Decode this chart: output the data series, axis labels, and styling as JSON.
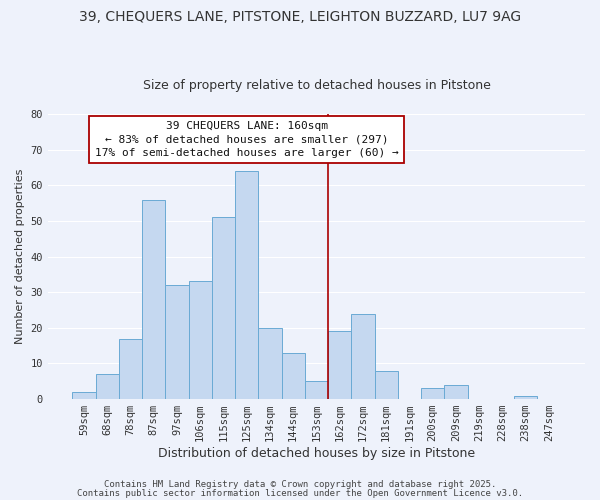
{
  "title": "39, CHEQUERS LANE, PITSTONE, LEIGHTON BUZZARD, LU7 9AG",
  "subtitle": "Size of property relative to detached houses in Pitstone",
  "xlabel": "Distribution of detached houses by size in Pitstone",
  "ylabel": "Number of detached properties",
  "bar_labels": [
    "59sqm",
    "68sqm",
    "78sqm",
    "87sqm",
    "97sqm",
    "106sqm",
    "115sqm",
    "125sqm",
    "134sqm",
    "144sqm",
    "153sqm",
    "162sqm",
    "172sqm",
    "181sqm",
    "191sqm",
    "200sqm",
    "209sqm",
    "219sqm",
    "228sqm",
    "238sqm",
    "247sqm"
  ],
  "bar_heights": [
    2,
    7,
    17,
    56,
    32,
    33,
    51,
    64,
    20,
    13,
    5,
    19,
    24,
    8,
    0,
    3,
    4,
    0,
    0,
    1,
    0
  ],
  "bar_color": "#c5d8f0",
  "bar_edge_color": "#6aaad4",
  "background_color": "#eef2fb",
  "grid_color": "#ffffff",
  "vline_color": "#aa0000",
  "vline_x_index": 11,
  "annotation_line1": "39 CHEQUERS LANE: 160sqm",
  "annotation_line2": "← 83% of detached houses are smaller (297)",
  "annotation_line3": "17% of semi-detached houses are larger (60) →",
  "annotation_box_facecolor": "#ffffff",
  "annotation_box_edgecolor": "#aa0000",
  "ylim": [
    0,
    80
  ],
  "yticks": [
    0,
    10,
    20,
    30,
    40,
    50,
    60,
    70,
    80
  ],
  "footer_line1": "Contains HM Land Registry data © Crown copyright and database right 2025.",
  "footer_line2": "Contains public sector information licensed under the Open Government Licence v3.0.",
  "title_fontsize": 10,
  "subtitle_fontsize": 9,
  "xlabel_fontsize": 9,
  "ylabel_fontsize": 8,
  "tick_fontsize": 7.5,
  "annotation_fontsize": 8,
  "footer_fontsize": 6.5
}
